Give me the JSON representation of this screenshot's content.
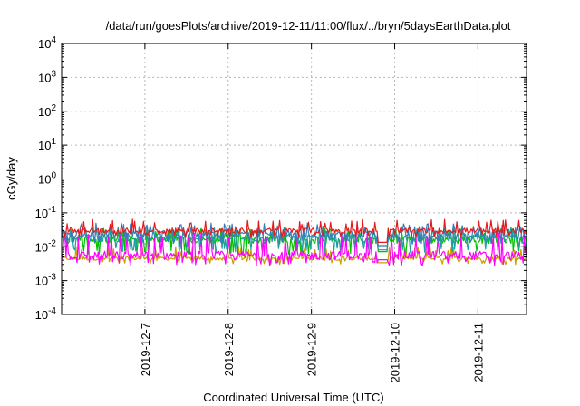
{
  "chart_data": {
    "type": "line",
    "title": "/data/run/goesPlots/archive/2019-12-11/11:00/flux/../bryn/5daysEarthData.plot",
    "xlabel": "Coordinated Universal Time (UTC)",
    "ylabel": "cGy/day",
    "xlim": [
      "2019-12-06 00:00",
      "2019-12-11 14:00"
    ],
    "ylim": [
      0.0001,
      10000
    ],
    "yscale": "log",
    "grid": true,
    "x_ticks": [
      {
        "x": "2019-12-07",
        "label": "2019-12-7"
      },
      {
        "x": "2019-12-08",
        "label": "2019-12-8"
      },
      {
        "x": "2019-12-09",
        "label": "2019-12-9"
      },
      {
        "x": "2019-12-10",
        "label": "2019-12-10"
      },
      {
        "x": "2019-12-11",
        "label": "2019-12-11"
      }
    ],
    "y_ticks": [
      {
        "value": 0.0001,
        "base": "10",
        "exp": "-4"
      },
      {
        "value": 0.001,
        "base": "10",
        "exp": "-3"
      },
      {
        "value": 0.01,
        "base": "10",
        "exp": "-2"
      },
      {
        "value": 0.1,
        "base": "10",
        "exp": "-1"
      },
      {
        "value": 1,
        "base": "10",
        "exp": "0"
      },
      {
        "value": 10,
        "base": "10",
        "exp": "1"
      },
      {
        "value": 100,
        "base": "10",
        "exp": "2"
      },
      {
        "value": 1000,
        "base": "10",
        "exp": "3"
      },
      {
        "value": 10000,
        "base": "10",
        "exp": "4"
      }
    ],
    "data_gap": [
      "2019-12-09 19:00",
      "2019-12-09 22:00"
    ],
    "series": [
      {
        "color": "#e41a1c",
        "base": 0.03,
        "spike": 0.065,
        "dip": 0.022,
        "noise": 0.35
      },
      {
        "color": "#377eb8",
        "base": 0.024,
        "spike": 0.05,
        "dip": 0.014,
        "noise": 0.45
      },
      {
        "color": "#1f9e9e",
        "base": 0.018,
        "spike": 0.04,
        "dip": 0.008,
        "noise": 0.5
      },
      {
        "color": "#00c000",
        "base": 0.016,
        "spike": 0.035,
        "dip": 0.007,
        "noise": 0.5
      },
      {
        "color": "#ff00ff",
        "base": 0.0055,
        "spike": 0.026,
        "dip": 0.0032,
        "noise": 0.6
      },
      {
        "color": "#c8a000",
        "base": 0.0045,
        "spike": 0.01,
        "dip": 0.0035,
        "noise": 0.25
      }
    ]
  }
}
